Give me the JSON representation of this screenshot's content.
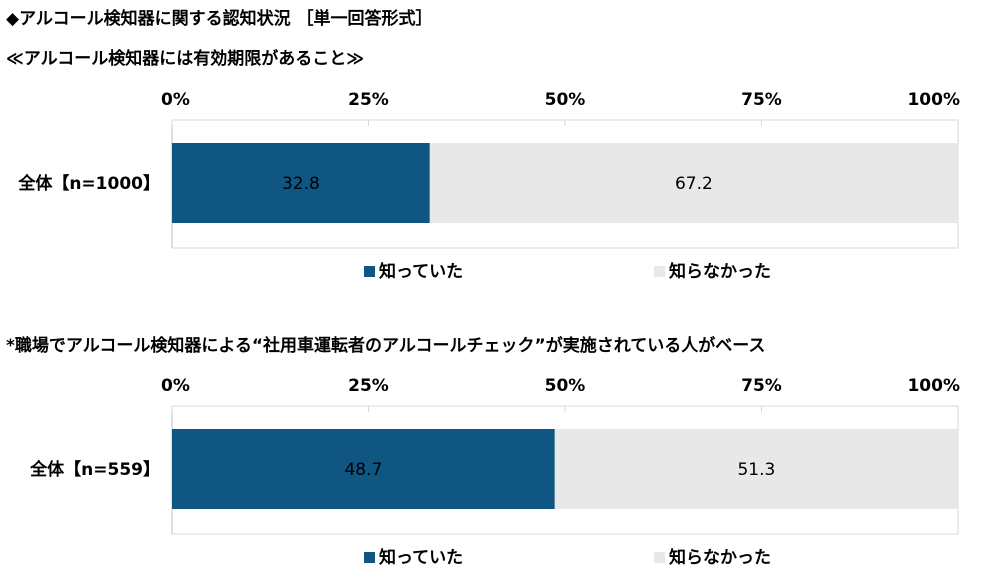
{
  "headings": {
    "h1": "◆アルコール検知器に関する認知状況 ［単一回答形式］",
    "h2": "≪アルコール検知器には有効期限があること≫",
    "h3": "*職場でアルコール検知器による“社用車運転者のアルコールチェック”が実施されている人がベース"
  },
  "chart_data": [
    {
      "type": "bar",
      "orientation": "horizontal-stacked-100",
      "x_ticks": [
        "0%",
        "25%",
        "50%",
        "75%",
        "100%"
      ],
      "xlim": [
        0,
        100
      ],
      "categories": [
        "全体【n=1000】"
      ],
      "series": [
        {
          "name": "知っていた",
          "values": [
            32.8
          ],
          "color": "#0f5782",
          "label_color": "#ffffff"
        },
        {
          "name": "知らなかった",
          "values": [
            67.2
          ],
          "color": "#e8e8e8",
          "label_color": "#000000"
        }
      ],
      "legend_position": "bottom"
    },
    {
      "type": "bar",
      "orientation": "horizontal-stacked-100",
      "x_ticks": [
        "0%",
        "25%",
        "50%",
        "75%",
        "100%"
      ],
      "xlim": [
        0,
        100
      ],
      "categories": [
        "全体【n=559】"
      ],
      "series": [
        {
          "name": "知っていた",
          "values": [
            48.7
          ],
          "color": "#0f5782",
          "label_color": "#ffffff"
        },
        {
          "name": "知らなかった",
          "values": [
            51.3
          ],
          "color": "#e8e8e8",
          "label_color": "#000000"
        }
      ],
      "legend_position": "bottom"
    }
  ]
}
